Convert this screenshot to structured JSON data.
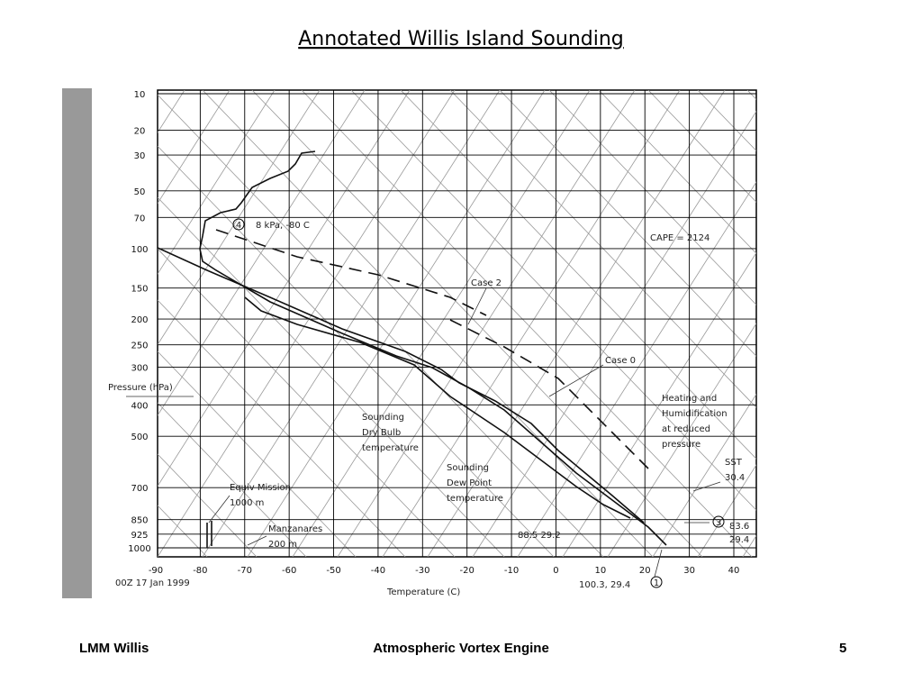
{
  "title": "Annotated Willis Island Sounding",
  "figure": {
    "y_ticks": [
      10,
      20,
      30,
      50,
      70,
      100,
      150,
      200,
      250,
      300,
      400,
      500,
      700,
      850,
      925,
      1000
    ],
    "x_ticks": [
      -90,
      -80,
      -70,
      -60,
      -50,
      -40,
      -30,
      -20,
      -10,
      0,
      10,
      20,
      30,
      40
    ],
    "y_label": "Pressure (hPa)",
    "x_label": "Temperature (C)",
    "date": "00Z 17 Jan 1999",
    "annotations": {
      "cape": "CAPE = 2124",
      "case2": "Case 2",
      "case0": "Case 0",
      "heating": [
        "Heating and",
        "Humidification",
        "at reduced",
        "pressure"
      ],
      "sst": [
        "SST",
        "30.4"
      ],
      "dry": [
        "Sounding",
        "Dry Bulb",
        "temperature"
      ],
      "dew": [
        "Sounding",
        "Dew Point",
        "temperature"
      ],
      "equiv": [
        "Equiv Mission",
        "1000 m"
      ],
      "manz": [
        "Manzanares",
        "200 m"
      ],
      "p4": "4",
      "p4_text": "8 kPa, -80 C",
      "p3": "3",
      "p3_text": [
        "83.6",
        "29.4"
      ],
      "p2_text": "88.5  29.2",
      "p1_text": "100.3, 29.4",
      "p1": "1"
    }
  },
  "footer": {
    "left": "LMM Willis",
    "center": "Atmospheric Vortex Engine",
    "right": "5"
  }
}
